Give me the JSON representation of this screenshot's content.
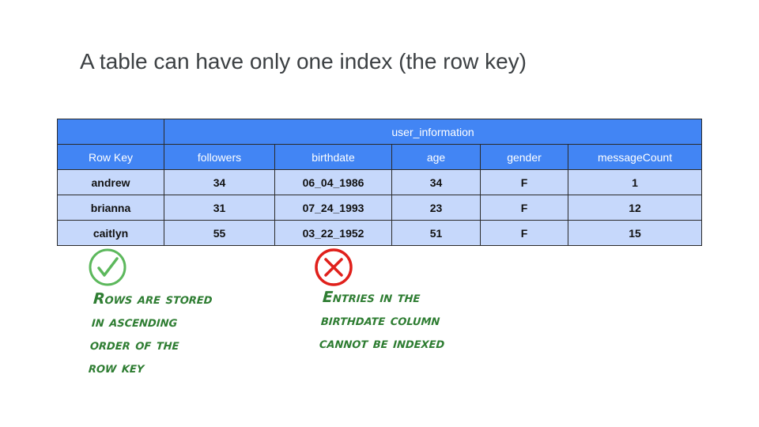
{
  "slide": {
    "title": "A table can have only one index (the row key)"
  },
  "table": {
    "group_header": "user_information",
    "columns": [
      "Row Key",
      "followers",
      "birthdate",
      "age",
      "gender",
      "messageCount"
    ],
    "rows": [
      [
        "andrew",
        "34",
        "06_04_1986",
        "34",
        "F",
        "1"
      ],
      [
        "brianna",
        "31",
        "07_24_1993",
        "23",
        "F",
        "12"
      ],
      [
        "caitlyn",
        "55",
        "03_22_1952",
        "51",
        "F",
        "15"
      ]
    ]
  },
  "notes": {
    "positive": {
      "icon": "check-circle-icon",
      "color": "#5cb85c",
      "lines": [
        "Rows are stored",
        "in ascending",
        "order of the",
        "row key"
      ]
    },
    "negative": {
      "icon": "x-circle-icon",
      "color": "#e0201b",
      "lines": [
        "Entries in the",
        "birthdate column",
        "cannot be indexed"
      ]
    }
  },
  "colors": {
    "header_blue": "#4285f4",
    "row_blue": "#c6d8fb",
    "note_green": "#2e7d32"
  }
}
